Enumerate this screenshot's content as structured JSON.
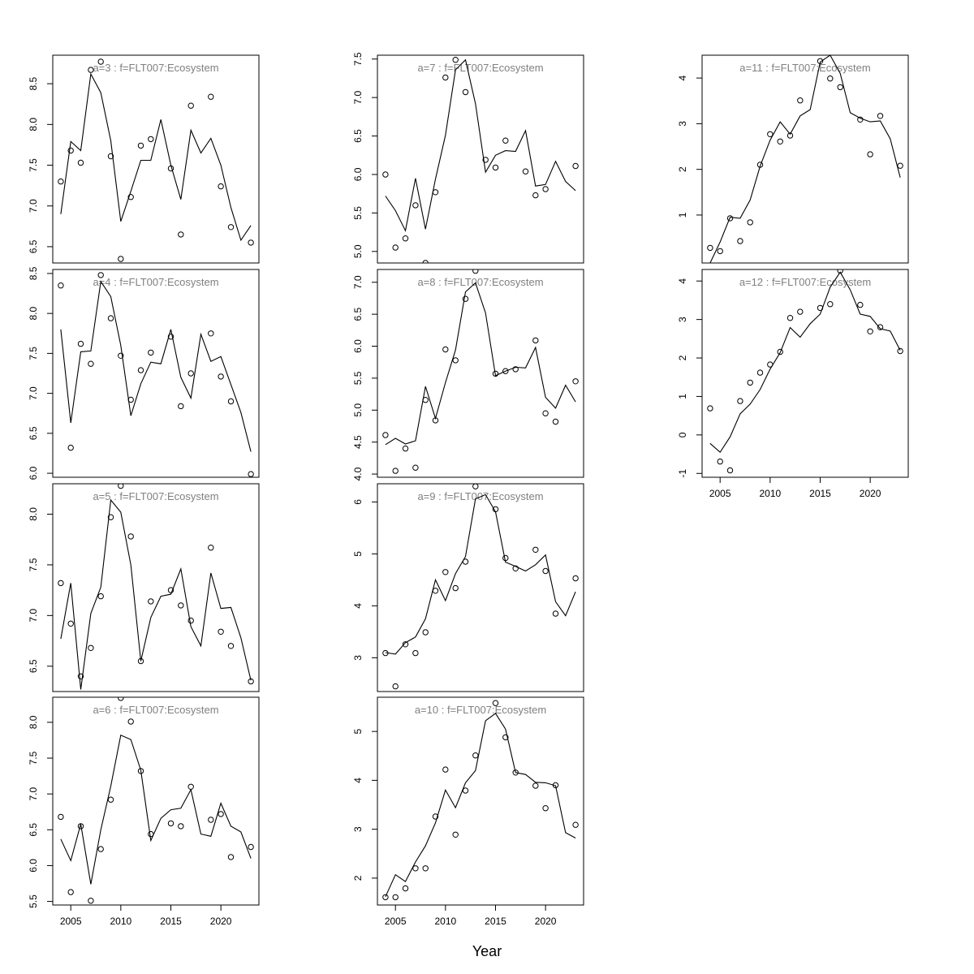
{
  "figure": {
    "xlabel": "Year"
  },
  "chart_data": [
    {
      "type": "scatter",
      "title": "a=3  :  f=FLT007:Ecosystem",
      "xlim": [
        2003.2,
        2023.8
      ],
      "ylim": [
        6.3,
        8.85
      ],
      "yticks": [
        6.5,
        7.0,
        7.5,
        8.0,
        8.5
      ],
      "xticks": [
        2005,
        2010,
        2015,
        2020
      ],
      "show_xticks": false,
      "x": [
        2004,
        2005,
        2006,
        2007,
        2008,
        2009,
        2010,
        2011,
        2012,
        2013,
        2014,
        2015,
        2016,
        2017,
        2018,
        2019,
        2020,
        2021,
        2022,
        2023
      ],
      "observed": [
        7.3,
        7.68,
        7.53,
        8.67,
        8.77,
        7.61,
        6.35,
        7.11,
        7.74,
        7.82,
        null,
        7.46,
        6.65,
        8.23,
        null,
        8.34,
        7.24,
        6.74,
        null,
        6.55
      ],
      "fitted": [
        6.9,
        7.79,
        7.68,
        8.62,
        8.39,
        7.8,
        6.81,
        7.18,
        7.56,
        7.56,
        8.06,
        7.5,
        7.08,
        7.93,
        7.65,
        7.83,
        7.5,
        6.98,
        6.58,
        6.76
      ]
    },
    {
      "type": "scatter",
      "title": "a=4  :  f=FLT007:Ecosystem",
      "xlim": [
        2003.2,
        2023.8
      ],
      "ylim": [
        5.95,
        8.55
      ],
      "yticks": [
        6.0,
        6.5,
        7.0,
        7.5,
        8.0,
        8.5
      ],
      "xticks": [
        2005,
        2010,
        2015,
        2020
      ],
      "show_xticks": false,
      "x": [
        2004,
        2005,
        2006,
        2007,
        2008,
        2009,
        2010,
        2011,
        2012,
        2013,
        2014,
        2015,
        2016,
        2017,
        2018,
        2019,
        2020,
        2021,
        2022,
        2023
      ],
      "observed": [
        8.35,
        6.32,
        7.62,
        7.37,
        8.48,
        7.94,
        7.47,
        6.92,
        7.29,
        7.51,
        null,
        7.71,
        6.84,
        7.25,
        null,
        7.75,
        7.21,
        6.9,
        null,
        5.99
      ],
      "fitted": [
        7.8,
        6.63,
        7.52,
        7.53,
        8.4,
        8.21,
        7.6,
        6.72,
        7.12,
        7.39,
        7.37,
        7.8,
        7.2,
        6.94,
        7.74,
        7.4,
        7.46,
        7.11,
        6.76,
        6.27
      ]
    },
    {
      "type": "scatter",
      "title": "a=5  :  f=FLT007:Ecosystem",
      "xlim": [
        2003.2,
        2023.8
      ],
      "ylim": [
        6.25,
        8.3
      ],
      "yticks": [
        6.5,
        7.0,
        7.5,
        8.0
      ],
      "xticks": [
        2005,
        2010,
        2015,
        2020
      ],
      "show_xticks": false,
      "x": [
        2004,
        2005,
        2006,
        2007,
        2008,
        2009,
        2010,
        2011,
        2012,
        2013,
        2014,
        2015,
        2016,
        2017,
        2018,
        2019,
        2020,
        2021,
        2022,
        2023
      ],
      "observed": [
        7.32,
        6.92,
        6.4,
        6.68,
        7.19,
        7.97,
        8.28,
        7.78,
        6.55,
        7.14,
        null,
        7.25,
        7.1,
        6.95,
        null,
        7.67,
        6.84,
        6.7,
        null,
        6.35
      ],
      "fitted": [
        6.77,
        7.32,
        6.27,
        7.02,
        7.28,
        8.14,
        8.02,
        7.5,
        6.55,
        6.98,
        7.19,
        7.21,
        7.46,
        6.89,
        6.7,
        7.42,
        7.07,
        7.08,
        6.78,
        6.36
      ]
    },
    {
      "type": "scatter",
      "title": "a=6  :  f=FLT007:Ecosystem",
      "xlim": [
        2003.2,
        2023.8
      ],
      "ylim": [
        5.45,
        8.35
      ],
      "yticks": [
        5.5,
        6.0,
        6.5,
        7.0,
        7.5,
        8.0
      ],
      "xticks": [
        2005,
        2010,
        2015,
        2020
      ],
      "show_xticks": true,
      "x": [
        2004,
        2005,
        2006,
        2007,
        2008,
        2009,
        2010,
        2011,
        2012,
        2013,
        2014,
        2015,
        2016,
        2017,
        2018,
        2019,
        2020,
        2021,
        2022,
        2023
      ],
      "observed": [
        6.68,
        5.63,
        6.55,
        5.51,
        6.23,
        6.92,
        8.34,
        8.01,
        7.32,
        6.44,
        null,
        6.59,
        6.55,
        7.1,
        null,
        6.64,
        6.72,
        6.12,
        null,
        6.26
      ],
      "fitted": [
        6.37,
        6.07,
        6.58,
        5.74,
        6.5,
        7.11,
        7.82,
        7.76,
        7.33,
        6.35,
        6.66,
        6.78,
        6.8,
        7.06,
        6.44,
        6.41,
        6.87,
        6.55,
        6.47,
        6.1
      ]
    },
    {
      "type": "scatter",
      "title": "a=7  :  f=FLT007:Ecosystem",
      "xlim": [
        2003.2,
        2023.8
      ],
      "ylim": [
        4.85,
        7.55
      ],
      "yticks": [
        5.0,
        5.5,
        6.0,
        6.5,
        7.0,
        7.5
      ],
      "xticks": [
        2005,
        2010,
        2015,
        2020
      ],
      "show_xticks": false,
      "x": [
        2004,
        2005,
        2006,
        2007,
        2008,
        2009,
        2010,
        2011,
        2012,
        2013,
        2014,
        2015,
        2016,
        2017,
        2018,
        2019,
        2020,
        2021,
        2022,
        2023
      ],
      "observed": [
        6.0,
        5.05,
        5.17,
        5.6,
        4.85,
        5.77,
        7.26,
        7.49,
        7.07,
        null,
        6.19,
        6.09,
        6.44,
        null,
        6.04,
        5.73,
        5.81,
        null,
        null,
        6.11
      ],
      "fitted": [
        5.72,
        5.53,
        5.27,
        5.95,
        5.29,
        5.94,
        6.51,
        7.36,
        7.49,
        6.92,
        6.03,
        6.25,
        6.31,
        6.3,
        6.57,
        5.85,
        5.87,
        6.17,
        5.91,
        5.79
      ]
    },
    {
      "type": "scatter",
      "title": "a=8  :  f=FLT007:Ecosystem",
      "xlim": [
        2003.2,
        2023.8
      ],
      "ylim": [
        3.95,
        7.2
      ],
      "yticks": [
        4.0,
        4.5,
        5.0,
        5.5,
        6.0,
        6.5,
        7.0
      ],
      "xticks": [
        2005,
        2010,
        2015,
        2020
      ],
      "show_xticks": false,
      "x": [
        2004,
        2005,
        2006,
        2007,
        2008,
        2009,
        2010,
        2011,
        2012,
        2013,
        2014,
        2015,
        2016,
        2017,
        2018,
        2019,
        2020,
        2021,
        2022,
        2023
      ],
      "observed": [
        4.61,
        4.05,
        4.4,
        4.1,
        5.16,
        4.84,
        5.95,
        5.78,
        6.74,
        7.18,
        null,
        5.57,
        5.61,
        5.64,
        null,
        6.09,
        4.95,
        4.82,
        null,
        5.45
      ],
      "fitted": [
        4.46,
        4.56,
        4.47,
        4.52,
        5.37,
        4.87,
        5.43,
        5.94,
        6.85,
        6.99,
        6.52,
        5.54,
        5.61,
        5.67,
        5.66,
        5.98,
        5.2,
        5.03,
        5.39,
        5.13
      ]
    },
    {
      "type": "scatter",
      "title": "a=9  :  f=FLT007:Ecosystem",
      "xlim": [
        2003.2,
        2023.8
      ],
      "ylim": [
        2.35,
        6.35
      ],
      "yticks": [
        3,
        4,
        5,
        6
      ],
      "xticks": [
        2005,
        2010,
        2015,
        2020
      ],
      "show_xticks": false,
      "x": [
        2004,
        2005,
        2006,
        2007,
        2008,
        2009,
        2010,
        2011,
        2012,
        2013,
        2014,
        2015,
        2016,
        2017,
        2018,
        2019,
        2020,
        2021,
        2022,
        2023
      ],
      "observed": [
        3.09,
        2.45,
        3.26,
        3.09,
        3.49,
        4.29,
        4.65,
        4.34,
        4.85,
        6.3,
        null,
        5.86,
        4.92,
        4.72,
        null,
        5.08,
        4.67,
        3.85,
        null,
        4.53
      ],
      "fitted": [
        3.1,
        3.07,
        3.29,
        3.4,
        3.75,
        4.5,
        4.1,
        4.62,
        4.95,
        6.06,
        6.14,
        5.81,
        4.84,
        4.76,
        4.67,
        4.79,
        4.98,
        4.08,
        3.81,
        4.27
      ]
    },
    {
      "type": "scatter",
      "title": "a=10  :  f=FLT007:Ecosystem",
      "xlim": [
        2003.2,
        2023.8
      ],
      "ylim": [
        1.45,
        5.7
      ],
      "yticks": [
        2,
        3,
        4,
        5
      ],
      "xticks": [
        2005,
        2010,
        2015,
        2020
      ],
      "show_xticks": true,
      "x": [
        2004,
        2005,
        2006,
        2007,
        2008,
        2009,
        2010,
        2011,
        2012,
        2013,
        2014,
        2015,
        2016,
        2017,
        2018,
        2019,
        2020,
        2021,
        2022,
        2023
      ],
      "observed": [
        1.61,
        1.61,
        1.79,
        2.2,
        2.2,
        3.26,
        4.22,
        2.89,
        3.79,
        4.51,
        null,
        5.58,
        4.88,
        4.16,
        null,
        3.89,
        3.43,
        3.9,
        null,
        3.09
      ],
      "fitted": [
        1.62,
        2.07,
        1.93,
        2.33,
        2.66,
        3.13,
        3.8,
        3.44,
        3.95,
        4.2,
        5.22,
        5.37,
        5.05,
        4.16,
        4.12,
        3.96,
        3.95,
        3.89,
        2.93,
        2.82
      ]
    },
    {
      "type": "scatter",
      "title": "a=11  :  f=FLT007:Ecosystem",
      "xlim": [
        2003.2,
        2023.8
      ],
      "ylim": [
        -0.05,
        4.5
      ],
      "yticks": [
        1,
        2,
        3,
        4
      ],
      "xticks": [
        2005,
        2010,
        2015,
        2020
      ],
      "show_xticks": false,
      "x": [
        2004,
        2005,
        2006,
        2007,
        2008,
        2009,
        2010,
        2011,
        2012,
        2013,
        2014,
        2015,
        2016,
        2017,
        2018,
        2019,
        2020,
        2021,
        2022,
        2023
      ],
      "observed": [
        0.28,
        0.21,
        0.93,
        0.43,
        0.84,
        2.1,
        2.77,
        2.61,
        2.74,
        3.51,
        null,
        4.37,
        3.99,
        3.8,
        null,
        3.09,
        2.33,
        3.17,
        null,
        2.08
      ],
      "fitted": [
        -0.05,
        0.41,
        0.95,
        0.93,
        1.33,
        2.07,
        2.64,
        3.04,
        2.77,
        3.17,
        3.31,
        4.35,
        4.5,
        4.1,
        3.24,
        3.12,
        3.04,
        3.06,
        2.67,
        1.82
      ]
    },
    {
      "type": "scatter",
      "title": "a=12  :  f=FLT007:Ecosystem",
      "xlim": [
        2003.2,
        2023.8
      ],
      "ylim": [
        -1.1,
        4.3
      ],
      "yticks": [
        -1,
        0,
        1,
        2,
        3,
        4
      ],
      "xticks": [
        2005,
        2010,
        2015,
        2020
      ],
      "show_xticks": true,
      "x": [
        2004,
        2005,
        2006,
        2007,
        2008,
        2009,
        2010,
        2011,
        2012,
        2013,
        2014,
        2015,
        2016,
        2017,
        2018,
        2019,
        2020,
        2021,
        2022,
        2023
      ],
      "observed": [
        0.69,
        -0.69,
        -0.92,
        0.88,
        1.36,
        1.62,
        1.83,
        2.16,
        3.04,
        3.2,
        null,
        3.3,
        3.4,
        4.27,
        null,
        3.38,
        2.69,
        2.8,
        null,
        2.18
      ],
      "fitted": [
        -0.22,
        -0.45,
        -0.05,
        0.55,
        0.8,
        1.18,
        1.71,
        2.14,
        2.79,
        2.54,
        2.89,
        3.14,
        3.84,
        4.23,
        3.77,
        3.14,
        3.08,
        2.76,
        2.7,
        2.2
      ]
    }
  ]
}
